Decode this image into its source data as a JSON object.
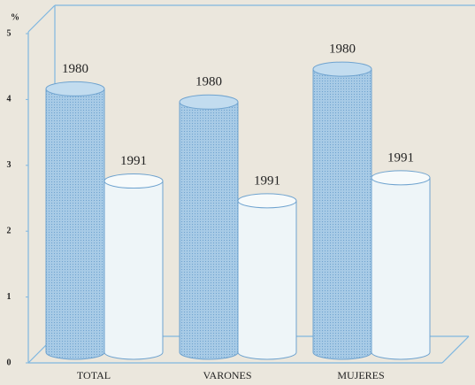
{
  "chart_data": {
    "type": "bar",
    "y_label": "%",
    "categories": [
      "TOTAL",
      "VARONES",
      "MUJERES"
    ],
    "series": [
      {
        "name": "1980",
        "color": "#a8cbe6",
        "values": [
          4.0,
          3.8,
          4.3
        ]
      },
      {
        "name": "1991",
        "color": "#eef5f8",
        "values": [
          2.6,
          2.3,
          2.65
        ]
      }
    ],
    "ylim": [
      0,
      5
    ],
    "yticks": [
      0,
      1,
      2,
      3,
      4,
      5
    ]
  }
}
